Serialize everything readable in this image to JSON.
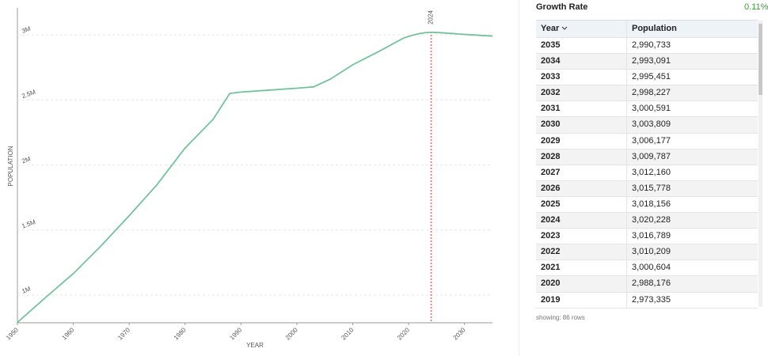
{
  "chart_data": {
    "type": "line",
    "x_label": "YEAR",
    "y_label": "POPULATION",
    "x": [
      1950,
      1955,
      1960,
      1965,
      1970,
      1975,
      1980,
      1985,
      1988,
      1990,
      1995,
      2000,
      2003,
      2006,
      2010,
      2015,
      2019,
      2020,
      2021,
      2022,
      2023,
      2024,
      2025,
      2026,
      2027,
      2028,
      2029,
      2030,
      2031,
      2032,
      2033,
      2034,
      2035
    ],
    "series": [
      {
        "name": "Population",
        "color": "#74c29c",
        "values": [
          790000,
          980000,
          1165000,
          1380000,
          1610000,
          1850000,
          2130000,
          2350000,
          2550000,
          2560000,
          2575000,
          2590000,
          2600000,
          2660000,
          2770000,
          2880000,
          2973335,
          2988176,
          3000604,
          3010209,
          3016789,
          3020228,
          3018156,
          3015778,
          3012160,
          3009787,
          3006177,
          3003809,
          3000591,
          2998227,
          2995451,
          2993091,
          2990733
        ]
      }
    ],
    "xlim": [
      1950,
      2035
    ],
    "xticks": [
      1950,
      1960,
      1970,
      1980,
      1990,
      2000,
      2010,
      2020,
      2030
    ],
    "ylim": [
      787000,
      3207000
    ],
    "yticks": [
      {
        "value": 1000000,
        "label": "1M"
      },
      {
        "value": 1500000,
        "label": "1.5M"
      },
      {
        "value": 2000000,
        "label": "2M"
      },
      {
        "value": 2500000,
        "label": "2.5M"
      },
      {
        "value": 3000000,
        "label": "3M"
      }
    ],
    "grid": true,
    "reference_x": 2024
  },
  "growth_rate": {
    "label": "Growth Rate",
    "value": "0.11%"
  },
  "table": {
    "header": [
      "Year",
      "Population"
    ],
    "rows": [
      [
        "2035",
        "2,990,733"
      ],
      [
        "2034",
        "2,993,091"
      ],
      [
        "2033",
        "2,995,451"
      ],
      [
        "2032",
        "2,998,227"
      ],
      [
        "2031",
        "3,000,591"
      ],
      [
        "2030",
        "3,003,809"
      ],
      [
        "2029",
        "3,006,177"
      ],
      [
        "2028",
        "3,009,787"
      ],
      [
        "2027",
        "3,012,160"
      ],
      [
        "2026",
        "3,015,778"
      ],
      [
        "2025",
        "3,018,156"
      ],
      [
        "2024",
        "3,020,228"
      ],
      [
        "2023",
        "3,016,789"
      ],
      [
        "2022",
        "3,010,209"
      ],
      [
        "2021",
        "3,000,604"
      ],
      [
        "2020",
        "2,988,176"
      ],
      [
        "2019",
        "2,973,335"
      ]
    ]
  },
  "footer": "showing: 86 rows"
}
